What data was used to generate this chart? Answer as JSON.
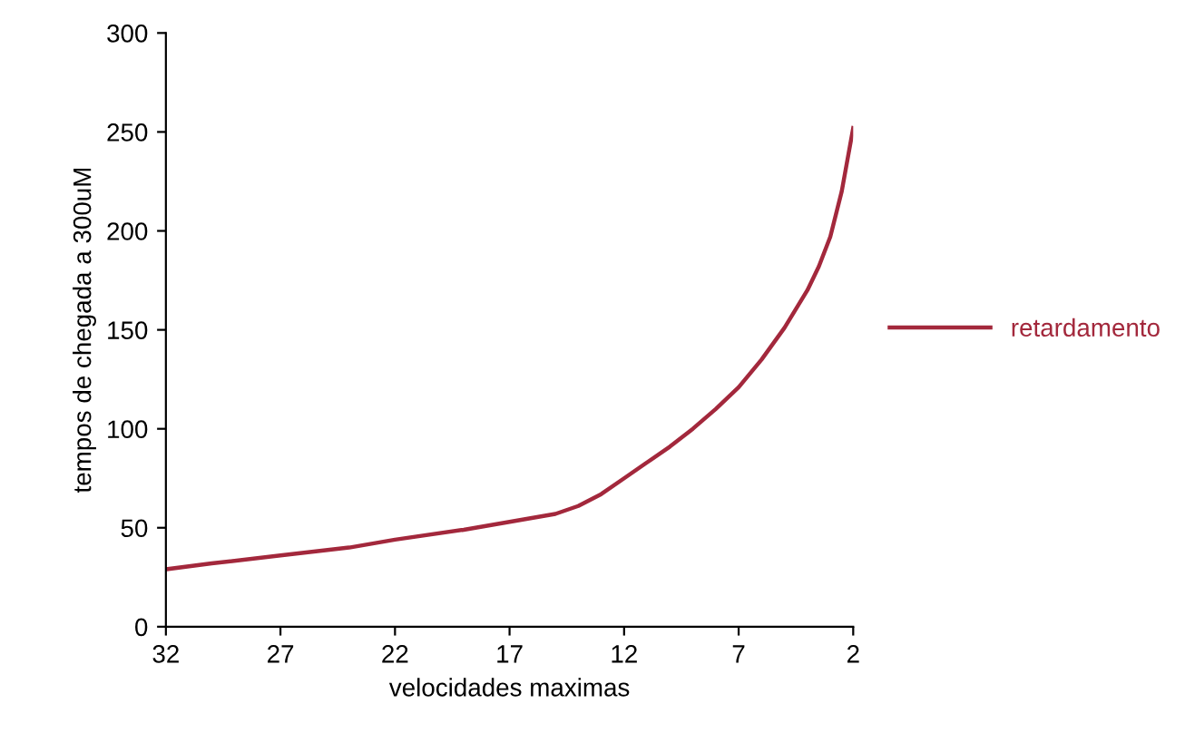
{
  "chart_data": {
    "type": "line",
    "xlabel": "velocidades maximas",
    "ylabel": "tempos de chegada a 300uM",
    "x": [
      32,
      30,
      27,
      24,
      22,
      19,
      17,
      15,
      14,
      13,
      12,
      11,
      10,
      9,
      8,
      7,
      6,
      5,
      4,
      3.5,
      3,
      2.5,
      2
    ],
    "series": [
      {
        "name": "retardamento",
        "color": "#a3283c",
        "values": [
          29,
          32,
          36,
          40,
          44,
          49,
          53,
          57,
          61,
          67,
          75,
          83,
          91,
          100,
          110,
          121,
          135,
          151,
          170,
          182,
          197,
          220,
          252
        ]
      }
    ],
    "xlim": [
      32,
      2
    ],
    "xticks": [
      32,
      27,
      22,
      17,
      12,
      7,
      2
    ],
    "ylim": [
      0,
      300
    ],
    "yticks": [
      0,
      50,
      100,
      150,
      200,
      250,
      300
    ],
    "grid": false,
    "legend": "right",
    "marker": "none",
    "line_style": "solid"
  }
}
